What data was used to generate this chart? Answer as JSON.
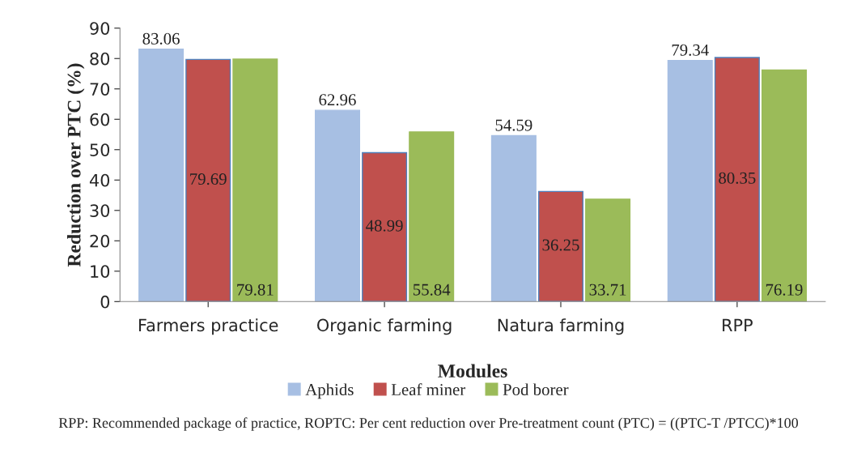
{
  "chart_data": {
    "type": "bar",
    "categories": [
      "Farmers practice",
      "Organic farming",
      "Natura farming",
      "RPP"
    ],
    "series": [
      {
        "name": "Aphids",
        "color": "#a7bfe3",
        "values": [
          83.06,
          62.96,
          54.59,
          79.34
        ]
      },
      {
        "name": "Leaf miner",
        "color": "#c0504d",
        "values": [
          79.69,
          48.99,
          36.25,
          80.35
        ]
      },
      {
        "name": "Pod borer",
        "color": "#9bbb59",
        "values": [
          79.81,
          55.84,
          33.71,
          76.19
        ]
      }
    ],
    "xlabel": "Modules",
    "ylabel": "Reduction over PTC (%)",
    "ylim": [
      0,
      90
    ],
    "yticks": [
      0,
      10,
      20,
      30,
      40,
      50,
      60,
      70,
      80,
      90
    ],
    "data_labels": true,
    "legend": "bottom",
    "grid": false,
    "annotations": [
      "RPP: Recommended package of practice, ROPTC: Per cent reduction over Pre-treatment count (PTC) = ((PTC-T /PTCC)*100"
    ]
  }
}
